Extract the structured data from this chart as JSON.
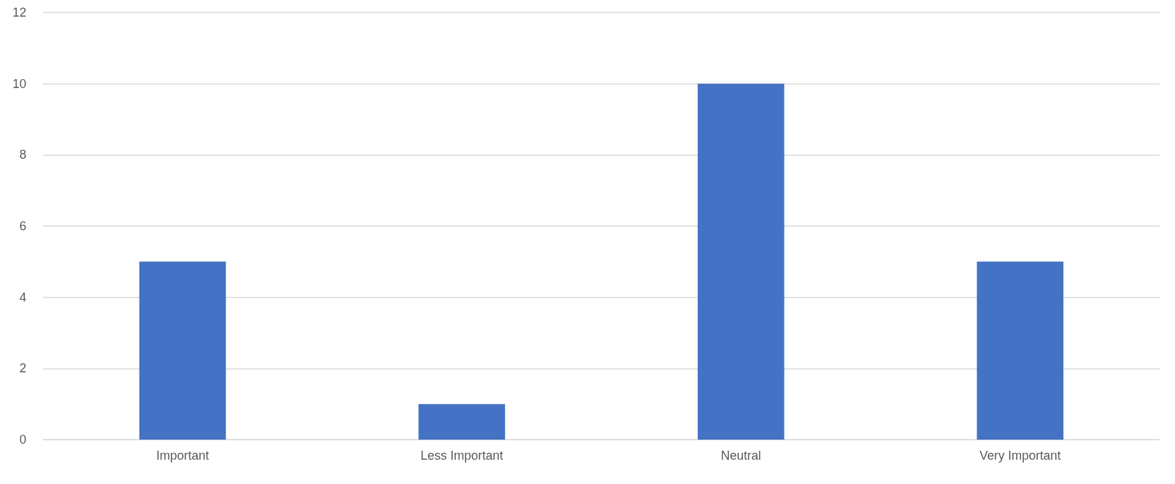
{
  "chart_data": {
    "type": "bar",
    "categories": [
      "Important",
      "Less Important",
      "Neutral",
      "Very Important"
    ],
    "values": [
      5,
      1,
      10,
      5
    ],
    "color": "#4472c4",
    "ylim": [
      0,
      12
    ],
    "yticks": [
      0,
      2,
      4,
      6,
      8,
      10,
      12
    ],
    "grid": "y"
  }
}
